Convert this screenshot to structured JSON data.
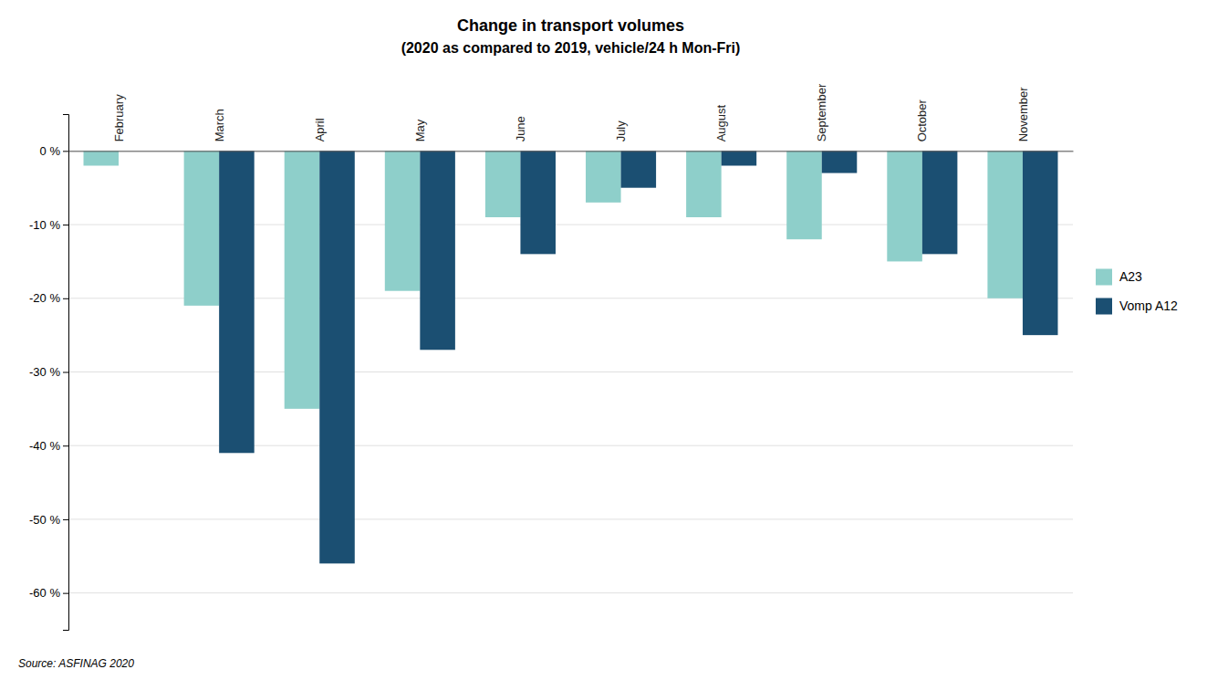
{
  "chart_data": {
    "type": "bar",
    "title": "Change in transport volumes",
    "subtitle": "(2020 as compared to 2019, vehicle/24 h Mon-Fri)",
    "categories": [
      "February",
      "March",
      "April",
      "May",
      "June",
      "July",
      "August",
      "September",
      "October",
      "November"
    ],
    "series": [
      {
        "name": "A23",
        "color": "#8ecfca",
        "values": [
          -2,
          -21,
          -35,
          -19,
          -9,
          -7,
          -9,
          -12,
          -15,
          -20
        ]
      },
      {
        "name": "Vomp A12",
        "color": "#1b4f72",
        "values": [
          0,
          -41,
          -56,
          -27,
          -14,
          -5,
          -2,
          -3,
          -14,
          -25
        ]
      }
    ],
    "ylim": [
      -65,
      5
    ],
    "yticks": [
      {
        "value": 0,
        "label": "0 %"
      },
      {
        "value": -10,
        "label": "-10 %"
      },
      {
        "value": -20,
        "label": "-20 %"
      },
      {
        "value": -30,
        "label": "-30 %"
      },
      {
        "value": -40,
        "label": "-40 %"
      },
      {
        "value": -50,
        "label": "-50 %"
      },
      {
        "value": -60,
        "label": "-60 %"
      }
    ],
    "grid": true,
    "legend": "right",
    "annotations": [
      "Source: ASFINAG 2020"
    ]
  }
}
